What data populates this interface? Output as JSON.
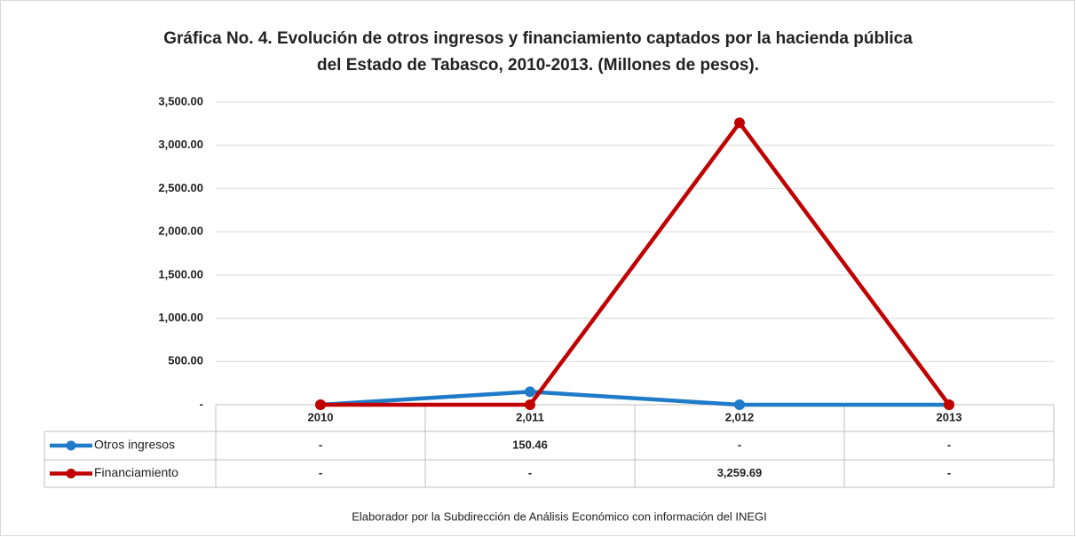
{
  "chart_data": {
    "type": "line",
    "title": [
      "Gráfica No. 4. Evolución de otros ingresos y  financiamiento captados por la hacienda pública",
      "del Estado de Tabasco, 2010-2013. (Millones de pesos)."
    ],
    "categories": [
      "2010",
      "2,011",
      "2,012",
      "2013"
    ],
    "series": [
      {
        "name": "Otros ingresos",
        "color": "#1f7ac8",
        "values": [
          0,
          150.46,
          0,
          0
        ],
        "value_labels": [
          "-",
          "150.46",
          "-",
          "-"
        ]
      },
      {
        "name": "Financiamiento",
        "color": "#c00000",
        "values": [
          0,
          0,
          3259.69,
          0
        ],
        "value_labels": [
          "-",
          "-",
          "3,259.69",
          "-"
        ]
      }
    ],
    "ylim": [
      0,
      3500
    ],
    "yticks": [
      {
        "value": 0,
        "label": "-"
      },
      {
        "value": 500,
        "label": "500.00"
      },
      {
        "value": 1000,
        "label": "1,000.00"
      },
      {
        "value": 1500,
        "label": "1,500.00"
      },
      {
        "value": 2000,
        "label": "2,000.00"
      },
      {
        "value": 2500,
        "label": "2,500.00"
      },
      {
        "value": 3000,
        "label": "3,000.00"
      },
      {
        "value": 3500,
        "label": "3,500.00"
      }
    ],
    "grid": true,
    "note": "Elaborador por la Subdirección de Análisis Económico con información del INEGI"
  }
}
